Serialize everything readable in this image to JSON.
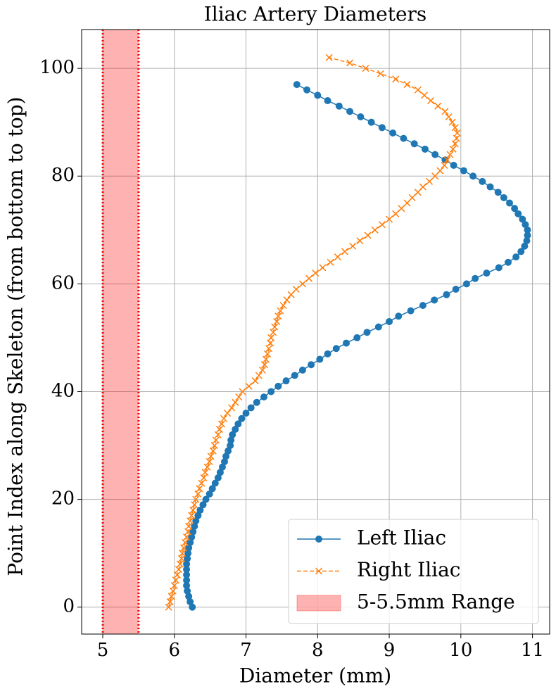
{
  "chart_data": {
    "type": "line",
    "title": "Iliac Artery Diameters",
    "x_label": "Diameter (mm)",
    "y_label": "Point Index along Skeleton (from bottom to top)",
    "xlim": [
      4.705,
      11.24
    ],
    "ylim": [
      -5,
      107.2
    ],
    "xticks": [
      5,
      6,
      7,
      8,
      9,
      10,
      11
    ],
    "yticks": [
      0,
      20,
      40,
      60,
      80,
      100
    ],
    "grid": true,
    "legend": "lower right",
    "spans": [
      {
        "name": "5-5.5mm Range",
        "from": 5,
        "to": 5.5,
        "color": "#ff0000"
      }
    ],
    "series": [
      {
        "name": "Left Iliac",
        "color": "#1f77b4",
        "marker": "circle",
        "dash": "solid",
        "x": [
          6.25,
          6.22,
          6.2,
          6.18,
          6.17,
          6.17,
          6.17,
          6.17,
          6.17,
          6.18,
          6.19,
          6.2,
          6.22,
          6.24,
          6.26,
          6.28,
          6.3,
          6.33,
          6.36,
          6.4,
          6.44,
          6.49,
          6.53,
          6.57,
          6.61,
          6.64,
          6.67,
          6.7,
          6.72,
          6.75,
          6.78,
          6.79,
          6.81,
          6.85,
          6.89,
          6.94,
          7.0,
          7.07,
          7.15,
          7.25,
          7.35,
          7.45,
          7.56,
          7.68,
          7.79,
          7.91,
          8.03,
          8.14,
          8.26,
          8.4,
          8.55,
          8.69,
          8.85,
          9.0,
          9.13,
          9.3,
          9.47,
          9.63,
          9.8,
          9.93,
          10.08,
          10.2,
          10.36,
          10.53,
          10.66,
          10.77,
          10.84,
          10.89,
          10.92,
          10.93,
          10.93,
          10.9,
          10.86,
          10.8,
          10.75,
          10.68,
          10.6,
          10.52,
          10.41,
          10.3,
          10.17,
          10.04,
          9.9,
          9.78,
          9.64,
          9.5,
          9.35,
          9.2,
          9.05,
          8.9,
          8.75,
          8.6,
          8.45,
          8.3,
          8.14,
          8.0,
          7.85,
          7.71
        ],
        "y": [
          0,
          1,
          2,
          3,
          4,
          5,
          6,
          7,
          8,
          9,
          10,
          11,
          12,
          13,
          14,
          15,
          16,
          17,
          18,
          19,
          20,
          21,
          22,
          23,
          24,
          25,
          26,
          27,
          28,
          29,
          30,
          31,
          32,
          33,
          34,
          35,
          36,
          37,
          38,
          39,
          40,
          41,
          42,
          43,
          44,
          45,
          46,
          47,
          48,
          49,
          50,
          51,
          52,
          53,
          54,
          55,
          56,
          57,
          58,
          59,
          60,
          61,
          62,
          63,
          64,
          65,
          66,
          67,
          68,
          69,
          70,
          71,
          72,
          73,
          74,
          75,
          76,
          77,
          78,
          79,
          80,
          81,
          82,
          83,
          84,
          85,
          86,
          87,
          88,
          89,
          90,
          91,
          92,
          93,
          94,
          95,
          96,
          97
        ]
      },
      {
        "name": "Right Iliac",
        "color": "#ff7f0e",
        "marker": "x",
        "dash": "dashed",
        "x": [
          5.92,
          5.94,
          5.96,
          5.98,
          6.0,
          6.02,
          6.04,
          6.06,
          6.08,
          6.1,
          6.11,
          6.13,
          6.15,
          6.17,
          6.19,
          6.2,
          6.22,
          6.24,
          6.26,
          6.28,
          6.3,
          6.33,
          6.35,
          6.38,
          6.41,
          6.43,
          6.46,
          6.49,
          6.51,
          6.54,
          6.56,
          6.58,
          6.61,
          6.63,
          6.66,
          6.69,
          6.74,
          6.8,
          6.85,
          6.9,
          6.95,
          7.04,
          7.13,
          7.18,
          7.23,
          7.26,
          7.28,
          7.3,
          7.32,
          7.34,
          7.35,
          7.38,
          7.4,
          7.43,
          7.45,
          7.48,
          7.52,
          7.57,
          7.63,
          7.7,
          7.79,
          7.88,
          7.97,
          8.07,
          8.18,
          8.28,
          8.38,
          8.49,
          8.59,
          8.7,
          8.8,
          8.9,
          9.0,
          9.09,
          9.17,
          9.25,
          9.32,
          9.4,
          9.47,
          9.56,
          9.64,
          9.71,
          9.77,
          9.81,
          9.85,
          9.89,
          9.92,
          9.94,
          9.95,
          9.92,
          9.88,
          9.83,
          9.78,
          9.68,
          9.58,
          9.49,
          9.4,
          9.25,
          9.09,
          8.88,
          8.67,
          8.45,
          8.16
        ],
        "y": [
          0,
          1,
          2,
          3,
          4,
          5,
          6,
          7,
          8,
          9,
          10,
          11,
          12,
          13,
          14,
          15,
          16,
          17,
          18,
          19,
          20,
          21,
          22,
          23,
          24,
          25,
          26,
          27,
          28,
          29,
          30,
          31,
          32,
          33,
          34,
          35,
          36,
          37,
          38,
          39,
          40,
          41,
          42,
          43,
          44,
          45,
          46,
          47,
          48,
          49,
          50,
          51,
          52,
          53,
          54,
          55,
          56,
          57,
          58,
          59,
          60,
          61,
          62,
          63,
          64,
          65,
          66,
          67,
          68,
          69,
          70,
          71,
          72,
          73,
          74,
          75,
          76,
          77,
          78,
          79,
          80,
          81,
          82,
          83,
          84,
          85,
          86,
          87,
          88,
          89,
          90,
          91,
          92,
          93,
          94,
          95,
          96,
          97,
          98,
          99,
          100,
          101,
          102
        ]
      }
    ]
  }
}
